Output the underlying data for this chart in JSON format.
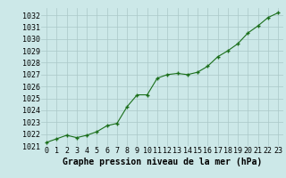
{
  "x": [
    0,
    1,
    2,
    3,
    4,
    5,
    6,
    7,
    8,
    9,
    10,
    11,
    12,
    13,
    14,
    15,
    16,
    17,
    18,
    19,
    20,
    21,
    22,
    23
  ],
  "y": [
    1021.3,
    1021.6,
    1021.9,
    1021.7,
    1021.9,
    1022.2,
    1022.7,
    1022.9,
    1024.3,
    1025.3,
    1025.3,
    1026.7,
    1027.0,
    1027.1,
    1027.0,
    1027.2,
    1027.7,
    1028.5,
    1029.0,
    1029.6,
    1030.5,
    1031.1,
    1031.8,
    1032.2
  ],
  "line_color": "#1a6e1a",
  "marker": "+",
  "marker_color": "#1a6e1a",
  "background_color": "#cce8e8",
  "grid_color": "#aac8c8",
  "ylabel_ticks": [
    1021,
    1022,
    1023,
    1024,
    1025,
    1026,
    1027,
    1028,
    1029,
    1030,
    1031,
    1032
  ],
  "ylim": [
    1021,
    1032.6
  ],
  "xlim": [
    -0.5,
    23.5
  ],
  "xlabel": "Graphe pression niveau de la mer (hPa)",
  "xlabel_fontsize": 7,
  "tick_fontsize": 6,
  "title": ""
}
